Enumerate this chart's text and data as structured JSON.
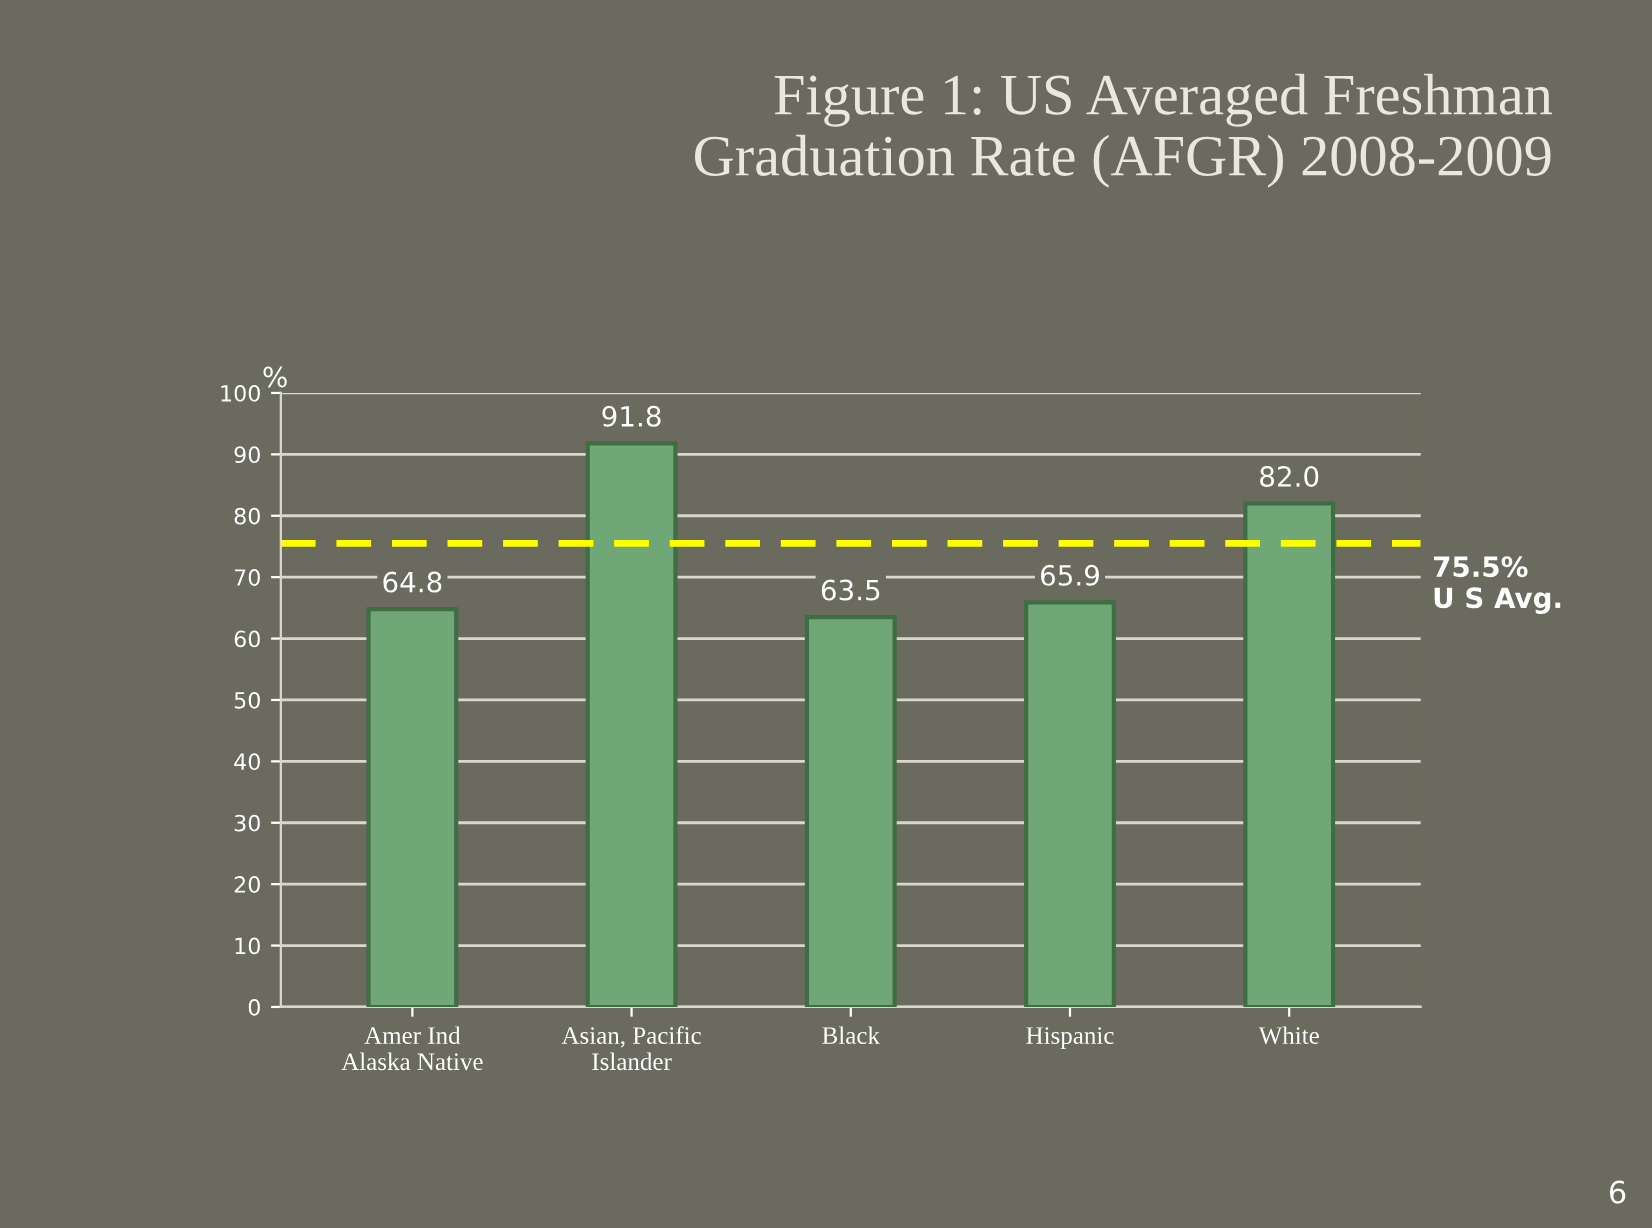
{
  "chart_data": {
    "type": "bar",
    "title": "Figure 1: US Averaged Freshman\nGraduation Rate (AFGR) 2008-2009",
    "ylabel": "%",
    "categories": [
      "Amer Ind\nAlaska Native",
      "Asian, Pacific\nIslander",
      "Black",
      "Hispanic",
      "White"
    ],
    "values": [
      64.8,
      91.8,
      63.5,
      65.9,
      82.0
    ],
    "color": "#6fa876",
    "value_labels": [
      "64.8",
      "91.8",
      "63.5",
      "65.9",
      "82.0"
    ],
    "ylim": [
      0,
      100
    ],
    "yticks": [
      0,
      10,
      20,
      30,
      40,
      50,
      60,
      70,
      80,
      90,
      100
    ],
    "grid": "y",
    "ref_lines": [
      {
        "axis": "y",
        "value": 75.5,
        "label": "75.5%\nU S Avg.",
        "color": "#ffff00",
        "line_style": "dashed"
      }
    ],
    "annotations": [
      "6"
    ]
  }
}
